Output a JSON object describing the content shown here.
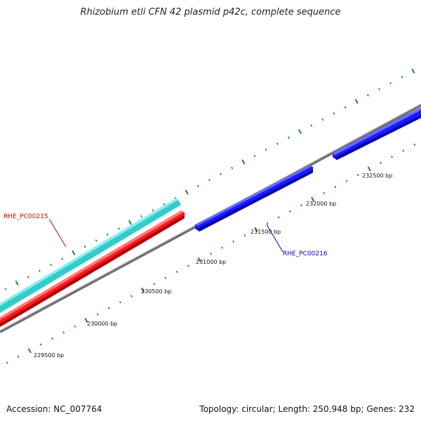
{
  "title": "Rhizobium etli CFN 42 plasmid p42c, complete sequence",
  "footer": {
    "accession": "Accession: NC_007764",
    "summary": "Topology: circular; Length: 250,948 bp; Genes: 232"
  },
  "colors": {
    "backbone": "#888888",
    "tick": "#1a8a1a",
    "forward_gene": "#33cccc",
    "reverse_gene_a": "#ff1a1a",
    "reverse_gene_b": "#1a1aff",
    "label_red": "#cc0000",
    "label_blue": "#0000cc"
  },
  "ticks": {
    "outer": [
      "230000 bp",
      "230500 bp",
      "231000 bp",
      "231500 bp",
      "232000 bp",
      "232500 bp"
    ],
    "inner_first": "229500 bp"
  },
  "genes": [
    {
      "name": "RHE_PC00215",
      "label_color": "#cc0000"
    },
    {
      "name": "RHE_PC00216",
      "label_color": "#0000cc"
    }
  ]
}
